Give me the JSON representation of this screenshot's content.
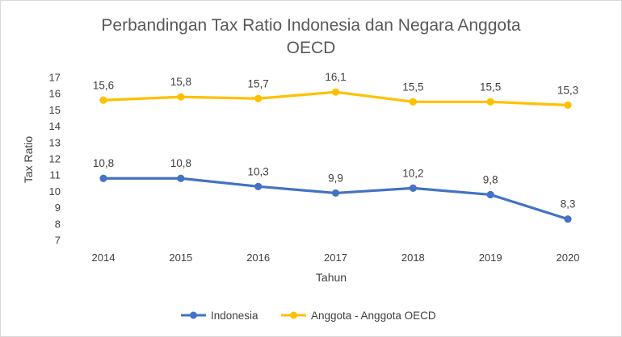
{
  "chart_data": {
    "type": "line",
    "title_lines": [
      "Perbandingan Tax Ratio Indonesia dan Negara Anggota",
      "OECD"
    ],
    "xlabel": "Tahun",
    "ylabel": "Tax Ratio",
    "categories": [
      "2014",
      "2015",
      "2016",
      "2017",
      "2018",
      "2019",
      "2020"
    ],
    "ylim": [
      7,
      17
    ],
    "yticks": [
      "7",
      "8",
      "9",
      "10",
      "11",
      "12",
      "13",
      "14",
      "15",
      "16",
      "17"
    ],
    "grid": false,
    "legend_position": "bottom",
    "series": [
      {
        "name": "Indonesia",
        "color": "#4472c4",
        "values": [
          10.8,
          10.8,
          10.3,
          9.9,
          10.2,
          9.8,
          8.3
        ],
        "labels": [
          "10,8",
          "10,8",
          "10,3",
          "9,9",
          "10,2",
          "9,8",
          "8,3"
        ]
      },
      {
        "name": "Anggota - Anggota OECD",
        "color": "#ffc000",
        "values": [
          15.6,
          15.8,
          15.7,
          16.1,
          15.5,
          15.5,
          15.3
        ],
        "labels": [
          "15,6",
          "15,8",
          "15,7",
          "16,1",
          "15,5",
          "15,5",
          "15,3"
        ]
      }
    ]
  }
}
